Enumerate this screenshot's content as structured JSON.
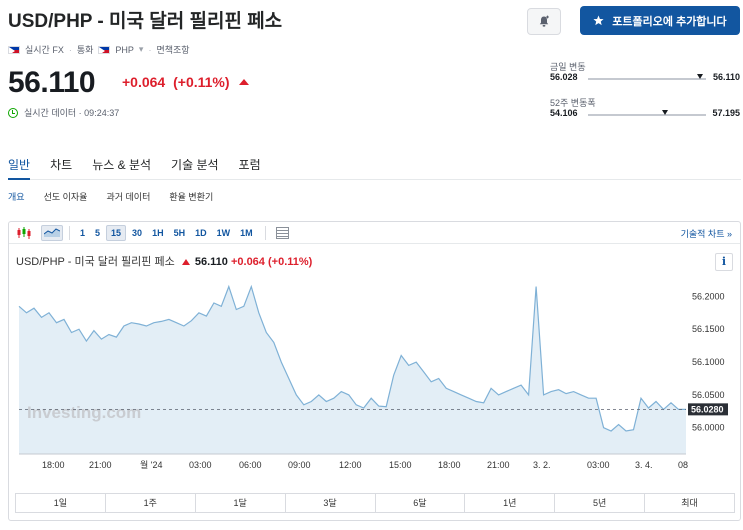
{
  "header": {
    "title": "USD/PHP - 미국 달러 필리핀 페소",
    "meta": {
      "realtime": "실시간 FX",
      "currency_label": "통화",
      "currency": "PHP",
      "disclaimer": "면책조항"
    },
    "add_portfolio_label": "포트폴리오에 추가합니다"
  },
  "quote": {
    "price": "56.110",
    "change": "+0.064",
    "change_pct": "(+0.11%)",
    "realtime_data": "실시간 데이터 · 09:24:37",
    "down_color": "#dd1f2c",
    "up_color": "#0ea600"
  },
  "ranges": {
    "day": {
      "label": "금일 변동",
      "low": "56.028",
      "high": "56.110",
      "position": 0.95
    },
    "week52": {
      "label": "52주 변동폭",
      "low": "54.106",
      "high": "57.195",
      "position": 0.65
    }
  },
  "nav": {
    "tabs": [
      "일반",
      "차트",
      "뉴스 & 분석",
      "기술 분석",
      "포럼"
    ],
    "active": 0,
    "subtabs": [
      "개요",
      "선도 이자율",
      "과거 데이터",
      "환율 변환기"
    ]
  },
  "chart_toolbar": {
    "intervals": [
      "1",
      "5",
      "15",
      "30",
      "1H",
      "5H",
      "1D",
      "1W",
      "1M"
    ],
    "active_interval": "15",
    "tech_chart_link": "기술적 차트 »"
  },
  "chart_header": {
    "name": "USD/PHP - 미국 달러 필리핀 페소",
    "price": "56.110",
    "change": "+0.064",
    "change_pct": "(+0.11%)",
    "info": "i"
  },
  "chart_data": {
    "type": "area",
    "x_tick_labels": [
      "18:00",
      "21:00",
      "월 '24",
      "03:00",
      "06:00",
      "09:00",
      "12:00",
      "15:00",
      "18:00",
      "21:00",
      "3. 2.",
      "03:00",
      "3. 4.",
      "08"
    ],
    "y_tick_labels": [
      "56.2000",
      "56.1500",
      "56.1000",
      "56.0500",
      "56.0000"
    ],
    "ylim": [
      55.96,
      56.225
    ],
    "current_value": "56.0280",
    "line_color": "#7fb1d6",
    "fill_color": "#e3eef6",
    "values": [
      56.185,
      56.175,
      56.182,
      56.168,
      56.175,
      56.16,
      56.165,
      56.145,
      56.15,
      56.132,
      56.148,
      56.135,
      56.142,
      56.138,
      56.155,
      56.16,
      56.158,
      56.155,
      56.16,
      56.162,
      56.165,
      56.16,
      56.155,
      56.163,
      56.175,
      56.17,
      56.19,
      56.185,
      56.215,
      56.18,
      56.185,
      56.215,
      56.175,
      56.145,
      56.13,
      56.1,
      56.075,
      56.05,
      56.035,
      56.04,
      56.05,
      56.04,
      56.045,
      56.055,
      56.05,
      56.035,
      56.03,
      56.045,
      56.033,
      56.032,
      56.08,
      56.11,
      56.095,
      56.1,
      56.085,
      56.07,
      56.075,
      56.06,
      56.055,
      56.05,
      56.045,
      56.04,
      56.038,
      56.06,
      56.05,
      56.055,
      56.06,
      56.065,
      56.05,
      56.215,
      56.05,
      56.055,
      56.058,
      56.052,
      56.055,
      56.05,
      56.045,
      56.045,
      56.0,
      55.995,
      56.005,
      55.995,
      55.997,
      56.045,
      56.03,
      56.04,
      56.028,
      56.038,
      56.028,
      56.028
    ],
    "watermark": "Investing.com",
    "grid": false
  },
  "periods": [
    "1일",
    "1주",
    "1달",
    "3달",
    "6달",
    "1년",
    "5년",
    "최대"
  ]
}
